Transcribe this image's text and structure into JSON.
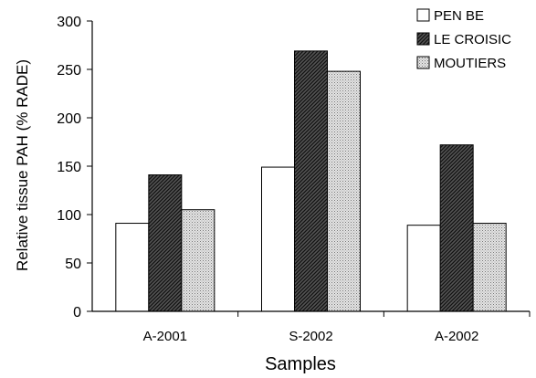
{
  "chart_data": {
    "type": "bar",
    "xlabel": "Samples",
    "ylabel": "Relative tissue PAH (% RADE)",
    "ylim": [
      0,
      300
    ],
    "yticks": [
      0,
      50,
      100,
      150,
      200,
      250,
      300
    ],
    "categories": [
      "A-2001",
      "S-2002",
      "A-2002"
    ],
    "series": [
      {
        "name": "PEN BE",
        "fill": "white",
        "values": [
          91,
          149,
          89
        ]
      },
      {
        "name": "LE CROISIC",
        "fill": "dense-hatch",
        "values": [
          141,
          269,
          172
        ]
      },
      {
        "name": "MOUTIERS",
        "fill": "stipple",
        "values": [
          105,
          248,
          91
        ]
      }
    ],
    "legend_position": "top-right",
    "grid": false
  }
}
